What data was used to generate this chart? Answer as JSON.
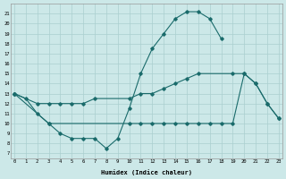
{
  "xlabel": "Humidex (Indice chaleur)",
  "bg_color": "#cce8e8",
  "line_color": "#1a6b6b",
  "grid_color": "#aacfcf",
  "series": [
    {
      "x": [
        0,
        1,
        2,
        3,
        4,
        5,
        6,
        7,
        8,
        9,
        10,
        11,
        12,
        13,
        14,
        15,
        16,
        17,
        18
      ],
      "y": [
        13,
        12.5,
        11,
        10,
        9,
        8.5,
        8.5,
        8.5,
        7.5,
        8.5,
        11.5,
        15,
        17.5,
        19,
        20.5,
        21.2,
        21.2,
        20.5,
        18.5
      ]
    },
    {
      "x": [
        0,
        2,
        3,
        4,
        5,
        6,
        7,
        10,
        11,
        12,
        13,
        14,
        15,
        16,
        19,
        20,
        21,
        22,
        23
      ],
      "y": [
        13,
        12,
        12,
        12,
        12,
        12,
        12.5,
        12.5,
        13,
        13,
        13.5,
        14,
        14.5,
        15,
        15,
        15,
        14,
        12,
        10.5
      ]
    },
    {
      "x": [
        0,
        3,
        10,
        11,
        12,
        13,
        14,
        15,
        16,
        17,
        18,
        19,
        20,
        21,
        22,
        23
      ],
      "y": [
        13,
        10,
        10,
        10,
        10,
        10,
        10,
        10,
        10,
        10,
        10,
        10,
        15,
        14,
        12,
        10.5
      ]
    }
  ],
  "xlim": [
    -0.3,
    23.3
  ],
  "ylim": [
    6.5,
    22
  ],
  "yticks": [
    7,
    8,
    9,
    10,
    11,
    12,
    13,
    14,
    15,
    16,
    17,
    18,
    19,
    20,
    21
  ],
  "xticks": [
    0,
    1,
    2,
    3,
    4,
    5,
    6,
    7,
    8,
    9,
    10,
    11,
    12,
    13,
    14,
    15,
    16,
    17,
    18,
    19,
    20,
    21,
    22,
    23
  ]
}
